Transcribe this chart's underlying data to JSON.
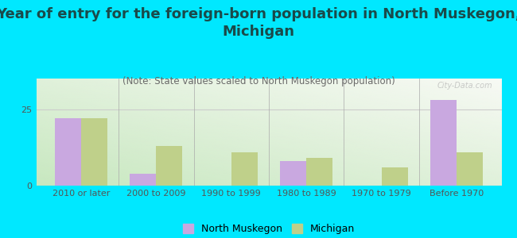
{
  "title": "Year of entry for the foreign-born population in North Muskegon,\nMichigan",
  "subtitle": "(Note: State values scaled to North Muskegon population)",
  "categories": [
    "2010 or later",
    "2000 to 2009",
    "1990 to 1999",
    "1980 to 1989",
    "1970 to 1979",
    "Before 1970"
  ],
  "north_muskegon": [
    22,
    4,
    0,
    8,
    0,
    28
  ],
  "michigan": [
    22,
    13,
    11,
    9,
    6,
    11
  ],
  "bar_color_nm": "#c9a8e0",
  "bar_color_mi": "#bfd08a",
  "background_outer": "#00e8ff",
  "ylim": [
    0,
    35
  ],
  "yticks": [
    0,
    25
  ],
  "title_fontsize": 13,
  "subtitle_fontsize": 8.5,
  "tick_fontsize": 8,
  "legend_fontsize": 9,
  "watermark": "City-Data.com",
  "title_color": "#1a4a4a",
  "subtitle_color": "#6a6a6a",
  "tick_color": "#555555"
}
